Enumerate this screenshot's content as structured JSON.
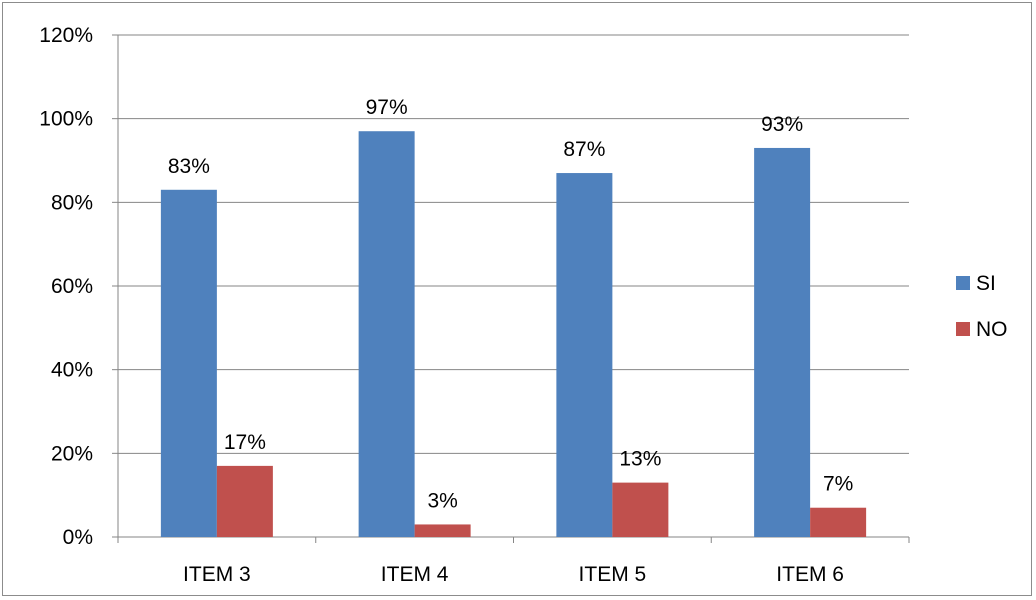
{
  "chart_data": {
    "type": "bar",
    "categories": [
      "ITEM 3",
      "ITEM 4",
      "ITEM 5",
      "ITEM 6"
    ],
    "series": [
      {
        "name": "SI",
        "values": [
          83,
          97,
          87,
          93
        ],
        "labels": [
          "83%",
          "97%",
          "87%",
          "93%"
        ],
        "color": "#4f81bd"
      },
      {
        "name": "NO",
        "values": [
          17,
          3,
          13,
          7
        ],
        "labels": [
          "17%",
          "3%",
          "13%",
          "7%"
        ],
        "color": "#c0504d"
      }
    ],
    "ylim": [
      0,
      120
    ],
    "yticks": [
      0,
      20,
      40,
      60,
      80,
      100,
      120
    ],
    "ytick_labels": [
      "0%",
      "20%",
      "40%",
      "60%",
      "80%",
      "100%",
      "120%"
    ],
    "grid": true,
    "legend_position": "right",
    "title": "",
    "xlabel": "",
    "ylabel": ""
  }
}
